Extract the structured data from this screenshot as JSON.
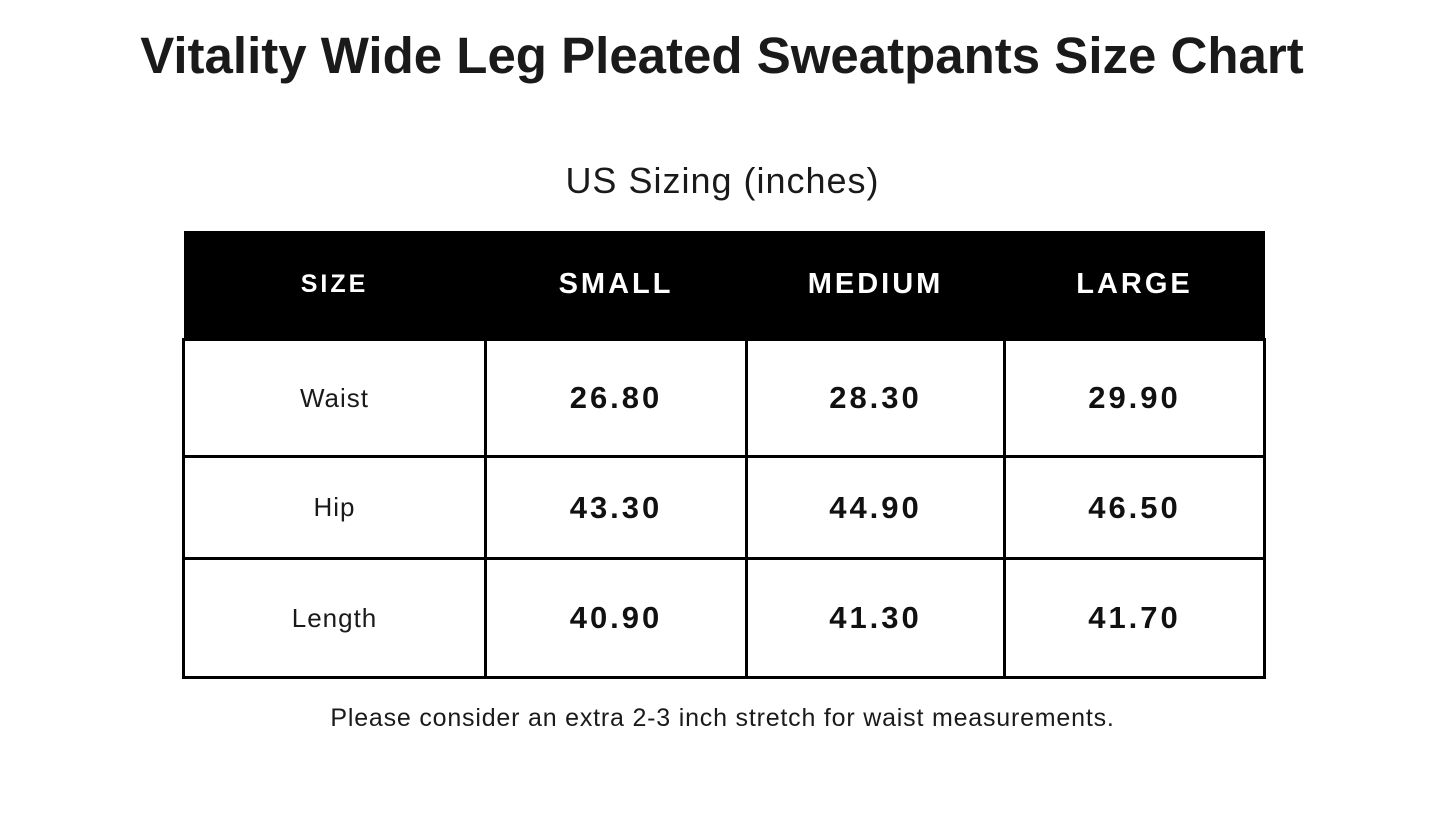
{
  "header": {
    "title": "Vitality Wide Leg Pleated Sweatpants Size Chart",
    "subtitle": "US Sizing (inches)"
  },
  "table": {
    "columns": [
      "SIZE",
      "SMALL",
      "MEDIUM",
      "LARGE"
    ],
    "rows": [
      [
        "Waist",
        "26.80",
        "28.30",
        "29.90"
      ],
      [
        "Hip",
        "43.30",
        "44.90",
        "46.50"
      ],
      [
        "Length",
        "40.90",
        "41.30",
        "41.70"
      ]
    ]
  },
  "footnote": "Please consider an extra 2-3 inch stretch for waist measurements."
}
